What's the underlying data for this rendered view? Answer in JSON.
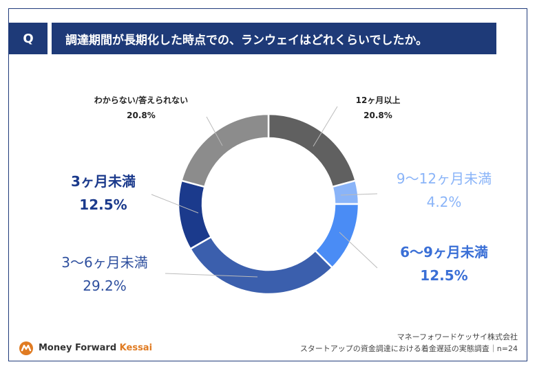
{
  "header": {
    "q_label": "Q",
    "question": "調達期間が長期化した時点での、ランウェイはどれくらいでしたか。"
  },
  "chart_data": {
    "type": "pie",
    "variant": "donut",
    "title": "調達期間が長期化した時点での、ランウェイはどれくらいでしたか。",
    "n": 24,
    "unit": "%",
    "slices": [
      {
        "label": "12ヶ月以上",
        "value": 20.8,
        "value_text": "20.8%",
        "color": "#606060"
      },
      {
        "label": "9〜12ヶ月未満",
        "value": 4.2,
        "value_text": "4.2%",
        "color": "#8ab4f8"
      },
      {
        "label": "6〜9ヶ月未満",
        "value": 12.5,
        "value_text": "12.5%",
        "color": "#4a8cf5"
      },
      {
        "label": "3〜6ヶ月未満",
        "value": 29.2,
        "value_text": "29.2%",
        "color": "#3b5fad"
      },
      {
        "label": "3ヶ月未満",
        "value": 12.5,
        "value_text": "12.5%",
        "color": "#1b3a8c"
      },
      {
        "label": "わからない/答えられない",
        "value": 20.8,
        "value_text": "20.8%",
        "color": "#8c8c8c"
      }
    ]
  },
  "label_colors": {
    "12m_plus": "#222222",
    "9_12": "#8ab4f8",
    "6_9": "#3a6fd6",
    "3_6": "#2e4f9e",
    "under_3": "#1b3a8c",
    "unknown": "#222222"
  },
  "footer": {
    "company": "マネーフォワードケッサイ株式会社",
    "survey": "スタートアップの資金調達における着金遅延の実態調査｜n=24"
  },
  "logo": {
    "icon": "money-forward-logo-icon",
    "text_main": "Money Forward",
    "text_accent": "Kessai"
  }
}
